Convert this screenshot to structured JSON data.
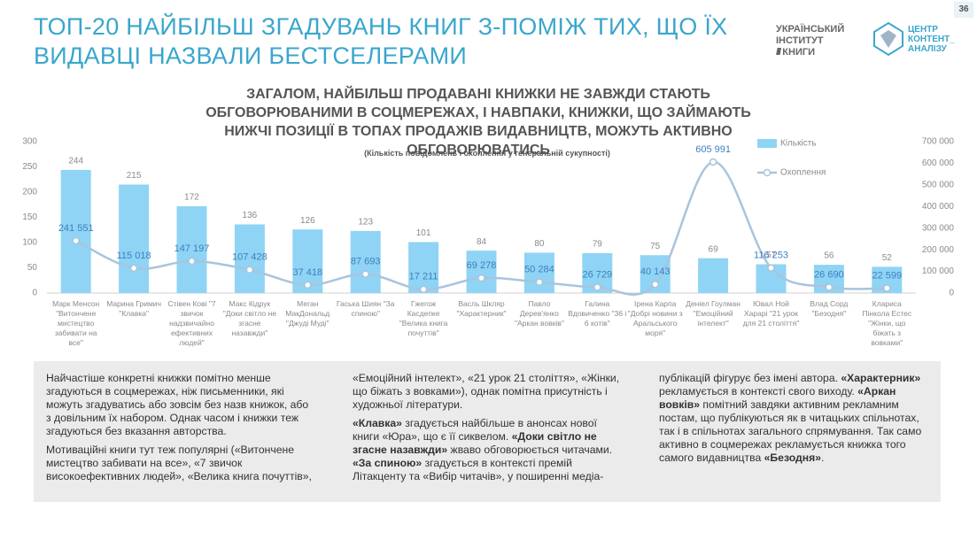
{
  "header": {
    "title": "ТОП-20 НАЙБІЛЬШ ЗГАДУВАНЬ КНИГ З-ПОМІЖ ТИХ, ЩО ЇХ ВИДАВЦІ НАЗВАЛИ БЕСТСЕЛЕРАМИ",
    "page_number": "36",
    "logo_uib": [
      "УКРАЇНСЬКИЙ",
      "ІНСТИТУТ",
      "КНИГИ"
    ],
    "logo_cca": [
      "ЦЕНТР",
      "КОНТЕНТ_",
      "АНАЛІЗУ"
    ]
  },
  "chart_data": {
    "type": "bar",
    "title": "ЗАГАЛОМ, НАЙБІЛЬШ ПРОДАВАНІ КНИЖКИ НЕ ЗАВЖДИ СТАЮТЬ ОБГОВОРЮВАНИМИ В СОЦМЕРЕЖАХ, І НАВПАКИ, КНИЖКИ, ЩО ЗАЙМАЮТЬ НИЖЧІ ПОЗИЦІЇ В ТОПАХ ПРОДАЖІВ ВИДАВНИЦТВ, МОЖУТЬ АКТИВНО ОБГОВОРЮВАТИСЬ",
    "subtitle": "(Кількість повідомлень і охоплення у генеральній сукупності)",
    "categories": [
      "Марк Менсон \"Витончене мистецтво забивати на все\"",
      "Марина Гримич \"Клавка\"",
      "Стівен Кові \"7 звичок надзвичайно ефективних людей\"",
      "Макс Кідрук \"Доки світло не згасне назавжди\"",
      "Меган МакДональд \"Джуді Муді\"",
      "Гаська Шиян \"За спиною\"",
      "Гжегож Касдепке \"Велика книга почуттів\"",
      "Васль Шкляр \"Характерник\"",
      "Павло Дерев'янко \"Аркан вовків\"",
      "Галина Вдовиченко \"36 і 6 котів\"",
      "Ірена Карпа \"Добрі новини з Аральського моря\"",
      "Деніел Гоулман \"Емоційний інтелект\"",
      "Ювал Ной Харарі \"21 урок для 21 століття\"",
      "Влад Сорд \"Безодня\"",
      "Клариса Пінкола Естес \"Жінки, що біжать з вовками\""
    ],
    "series": [
      {
        "name": "Кількість",
        "color": "#8fd4f4",
        "values": [
          244,
          215,
          172,
          136,
          126,
          123,
          101,
          84,
          80,
          79,
          75,
          69,
          57,
          56,
          52
        ]
      },
      {
        "name": "Охоплення",
        "type": "line",
        "axis": "y2",
        "color": "#a9c4dd",
        "label_color": "#3d7fc1",
        "values": [
          241551,
          115018,
          147197,
          107428,
          37418,
          87693,
          17211,
          69278,
          50284,
          26729,
          40143,
          605991,
          116253,
          26690,
          22599
        ],
        "value_labels": [
          "241 551",
          "115 018",
          "147 197",
          "107 428",
          "37 418",
          "87 693",
          "17 211",
          "69 278",
          "50 284",
          "26 729",
          "40 143",
          "605 991",
          "116 253",
          "26 690",
          "22 599"
        ]
      }
    ],
    "ylim": [
      0,
      300
    ],
    "yticks": [
      0,
      50,
      100,
      150,
      200,
      250,
      300
    ],
    "y2lim": [
      0,
      700000
    ],
    "y2ticks": [
      0,
      {
        "value": 100000,
        "label": "100 000"
      },
      {
        "value": 200000,
        "label": "200 000"
      },
      {
        "value": 300000,
        "label": "300 000"
      },
      {
        "value": 400000,
        "label": "400 000"
      },
      {
        "value": 500000,
        "label": "500 000"
      },
      {
        "value": 600000,
        "label": "600 000"
      },
      {
        "value": 700000,
        "label": "700 000"
      }
    ],
    "legend": "top-right"
  },
  "notes": [
    [
      "Найчастіше конкретні книжки помітно менше згадуються в соцмережах, ніж письменники, які можуть згадуватись або зовсім без назв книжок, або з довільним їх набором. Однак часом і книжки теж згадуються без вказання авторства."
    ],
    [
      "Мотиваційні книги тут теж популярні («Витончене мистецтво забивати на все», «7 звичок високоефективних людей», «Велика книга почуттів», «Емоційний інтелект», «21 урок 21 століття», «Жінки, що біжать з вовками»), однак помітна присутність і художньої літератури."
    ],
    [
      {
        "text": "«Клавка»",
        "bold": true
      },
      " згадується найбільше в анонсах нової книги «Юра», що є її сиквелом. ",
      {
        "text": "«Доки світло не згасне назавжди»",
        "bold": true
      },
      " жваво обговорюється читачами. ",
      {
        "text": "«За спиною»",
        "bold": true
      },
      " згадується в контексті премій Літакценту та «Вибір читачів», у поширенні медіа-публікацій фігурує без імені автора. ",
      {
        "text": "«Характерник»",
        "bold": true
      },
      " рекламується в контексті свого виходу. ",
      {
        "text": "«Аркан вовків»",
        "bold": true
      },
      " помітний завдяки активним рекламним постам, що публікуються як в читацьких спільнотах, так і в спільнотах загального спрямування. Так само активно в соцмережах рекламується книжка того самого видавництва ",
      {
        "text": "«Безодня»",
        "bold": true
      },
      "."
    ]
  ]
}
